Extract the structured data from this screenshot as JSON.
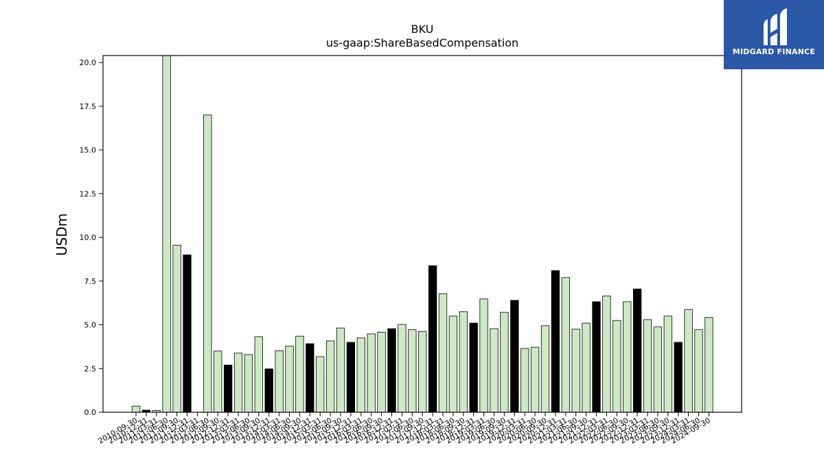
{
  "chart_data": {
    "type": "bar",
    "title": "BKU",
    "subtitle": "us-gaap:ShareBasedCompensation",
    "xlabel": "",
    "ylabel": "USDm",
    "ylim": [
      0,
      20.4
    ],
    "yticks": [
      0.0,
      2.5,
      5.0,
      7.5,
      10.0,
      12.5,
      15.0,
      17.5,
      20.0
    ],
    "ytick_labels": [
      "0.0",
      "2.5",
      "5.0",
      "7.5",
      "10.0",
      "12.5",
      "15.0",
      "17.5",
      "20.0"
    ],
    "grid": false,
    "legend": "none",
    "colors": {
      "quarter": "#cce8c4",
      "annual": "#000000",
      "edge": "#000000"
    },
    "categories": [
      "2010-09-30",
      "2010-12-31",
      "2011-03-31",
      "2011-06-30",
      "2011-09-30",
      "2011-12-31",
      "2012-03-31",
      "2012-06-30",
      "2012-09-30",
      "2012-12-31",
      "2013-03-31",
      "2013-06-30",
      "2013-09-30",
      "2013-12-31",
      "2014-03-31",
      "2014-06-30",
      "2014-09-30",
      "2014-12-31",
      "2015-03-31",
      "2015-06-30",
      "2015-09-30",
      "2015-12-31",
      "2016-03-31",
      "2016-06-30",
      "2016-09-30",
      "2016-12-31",
      "2017-03-31",
      "2017-06-30",
      "2017-09-30",
      "2017-12-31",
      "2018-03-31",
      "2018-06-30",
      "2018-09-30",
      "2018-12-31",
      "2019-03-31",
      "2019-06-30",
      "2019-09-30",
      "2019-12-31",
      "2020-03-31",
      "2020-06-30",
      "2020-09-30",
      "2020-12-31",
      "2021-03-31",
      "2021-06-30",
      "2021-09-30",
      "2021-12-31",
      "2022-03-31",
      "2022-06-30",
      "2022-09-30",
      "2022-12-31",
      "2023-03-31",
      "2023-06-30",
      "2023-09-30",
      "2023-12-31",
      "2024-03-31",
      "2024-06-30",
      "2024-09-30"
    ],
    "values": [
      0.35,
      0.12,
      0.1,
      20.5,
      9.55,
      9.0,
      null,
      17.0,
      3.5,
      2.7,
      3.38,
      3.3,
      4.32,
      2.48,
      3.52,
      3.78,
      4.35,
      3.92,
      3.18,
      4.08,
      4.82,
      4.0,
      4.25,
      4.48,
      4.58,
      4.78,
      5.02,
      4.72,
      4.62,
      8.38,
      6.78,
      5.5,
      5.75,
      5.1,
      6.48,
      4.78,
      5.72,
      6.4,
      3.65,
      3.72,
      4.95,
      8.1,
      7.7,
      4.75,
      5.1,
      6.32,
      6.65,
      5.25,
      6.32,
      7.05,
      5.3,
      4.88,
      5.5,
      4.0,
      5.88,
      4.72,
      5.42
    ],
    "annual_flags": [
      false,
      true,
      false,
      false,
      false,
      true,
      false,
      false,
      false,
      true,
      false,
      false,
      false,
      true,
      false,
      false,
      false,
      true,
      false,
      false,
      false,
      true,
      false,
      false,
      false,
      true,
      false,
      false,
      false,
      true,
      false,
      false,
      false,
      true,
      false,
      false,
      false,
      true,
      false,
      false,
      false,
      true,
      false,
      false,
      false,
      true,
      false,
      false,
      false,
      true,
      false,
      false,
      false,
      true,
      false,
      false,
      false
    ]
  },
  "logo": {
    "text": "MIDGARD FINANCE",
    "icon": "midgard-logo-icon"
  }
}
